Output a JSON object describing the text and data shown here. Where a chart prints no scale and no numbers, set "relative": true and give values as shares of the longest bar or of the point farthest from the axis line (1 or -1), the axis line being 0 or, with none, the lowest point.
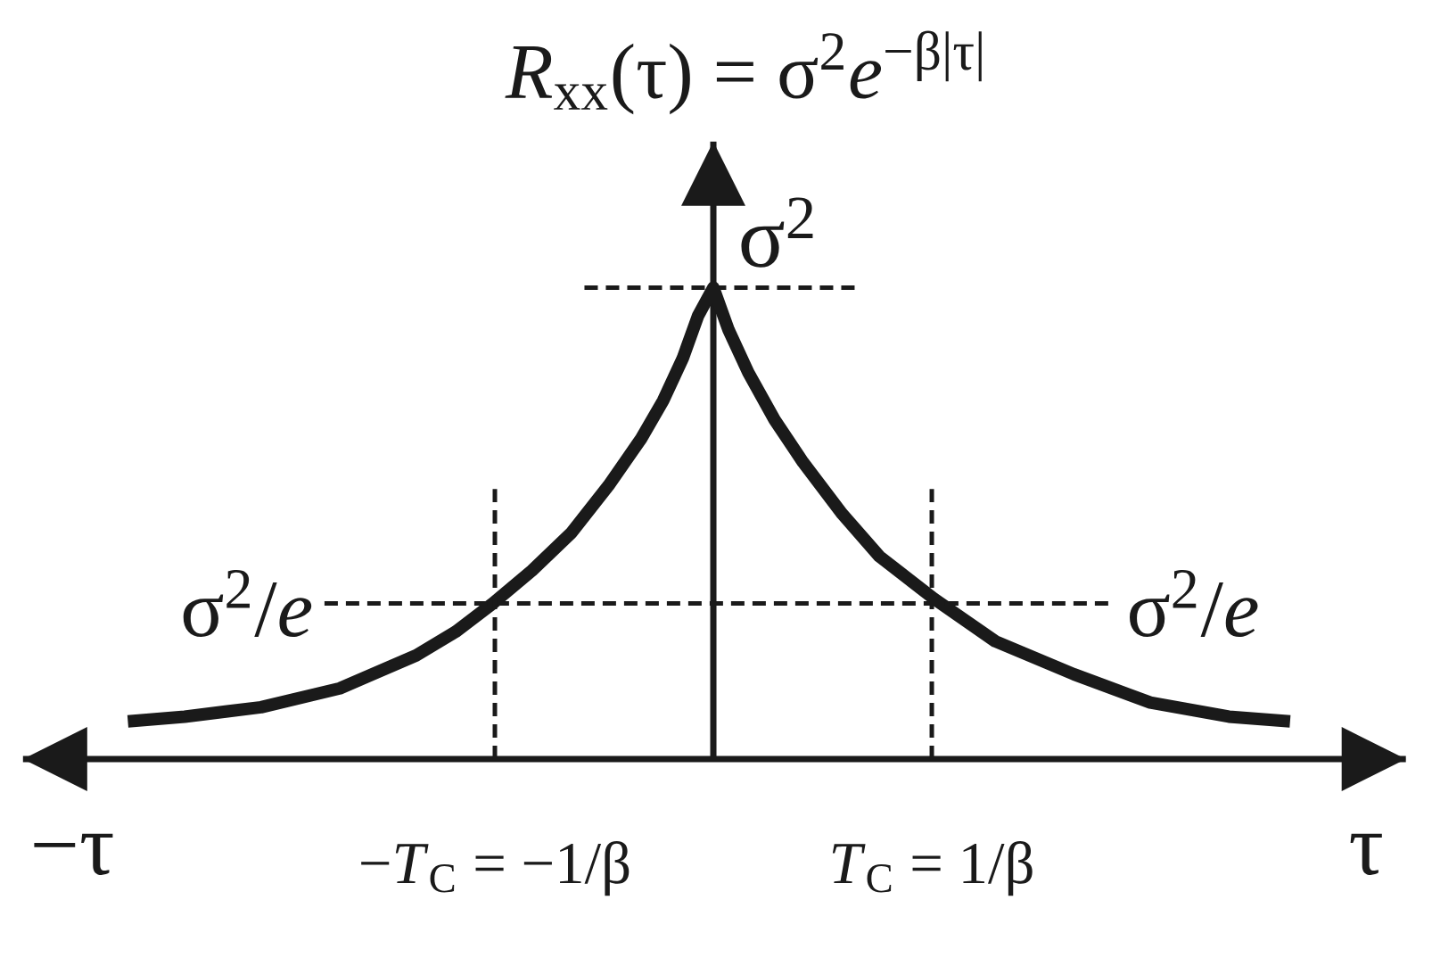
{
  "chart_data": {
    "type": "line",
    "title": "*R*$_{xx}$(τ) = σ$^{2}$*e*$^{−β|τ|}$",
    "xlabel": "τ",
    "annotations": [
      "−τ"
    ],
    "relative": true,
    "x": [
      -2.68,
      -2.42,
      -2.07,
      -1.71,
      -1.36,
      -1.18,
      -1.01,
      -0.83,
      -0.65,
      -0.48,
      -0.33,
      -0.23,
      -0.14,
      -0.07,
      0,
      0.07,
      0.16,
      0.28,
      0.41,
      0.59,
      0.76,
      1.01,
      1.29,
      1.65,
      2.0,
      2.36,
      2.64
    ],
    "series": [
      {
        "color": "#1a1a1a",
        "values": [
          0.08,
          0.09,
          0.11,
          0.15,
          0.22,
          0.27,
          0.33,
          0.4,
          0.48,
          0.58,
          0.68,
          0.76,
          0.85,
          0.94,
          1,
          0.91,
          0.82,
          0.72,
          0.63,
          0.52,
          0.43,
          0.34,
          0.25,
          0.18,
          0.12,
          0.09,
          0.08
        ]
      }
    ],
    "xlim": [
      -3.16,
      3.17
    ],
    "xticks": [
      {
        "value": -1,
        "label": "−*T*$_{C}$ = −1/β"
      },
      {
        "value": 1,
        "label": "*T*$_{C}$ = 1/β"
      }
    ],
    "ref_lines": [
      {
        "axis": "y",
        "value": 1,
        "label": "σ$^{2}$",
        "color": "#1a1a1a",
        "line_style": "dashed"
      },
      {
        "axis": "y",
        "value": 0.33,
        "label": "σ$^{2}$/*e*",
        "color": "#1a1a1a",
        "line_style": "dashed"
      },
      {
        "axis": "x",
        "value": -1,
        "color": "#1a1a1a",
        "line_style": "dashed"
      },
      {
        "axis": "x",
        "value": 1,
        "color": "#1a1a1a",
        "line_style": "dashed"
      }
    ],
    "marker": "none",
    "line_style": "solid"
  }
}
